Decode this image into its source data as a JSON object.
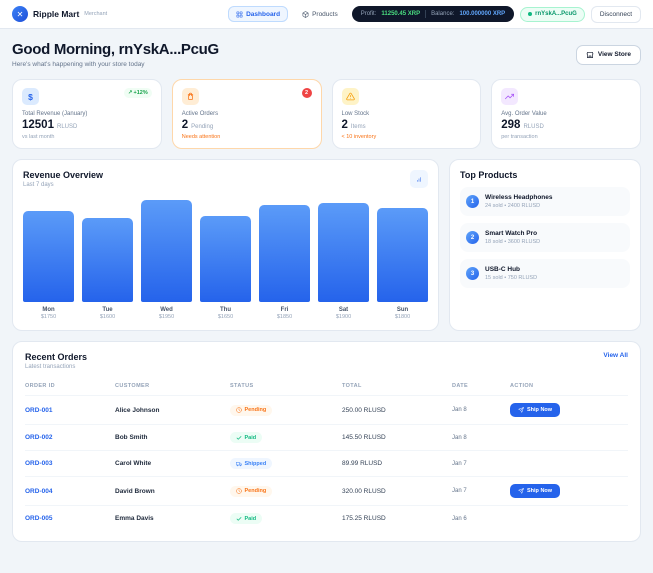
{
  "icons": {
    "logo": "✕",
    "trend_up": "↗",
    "dollar": "$"
  },
  "colors": {
    "accent": "#2563eb",
    "success": "#10b981",
    "warning": "#f97316",
    "danger": "#ef4444",
    "purple": "#a855f7",
    "background": "#f1f5f9"
  },
  "navbar": {
    "brand": "Ripple Mart",
    "brand_tag": "Merchant",
    "nav_dashboard": "Dashboard",
    "nav_products": "Products",
    "profit_label": "Profit:",
    "profit_value": "11250.45 XRP",
    "balance_label": "Balance:",
    "balance_value": "100.000000 XRP",
    "wallet_address": "rnYskA...PcuG",
    "disconnect_label": "Disconnect"
  },
  "header": {
    "greeting": "Good Morning, rnYskA...PcuG",
    "subtitle": "Here's what's happening with your store today",
    "view_store_label": "View Store"
  },
  "stats": [
    {
      "title": "Total Revenue (January)",
      "value": "12501",
      "unit": "RLUSD",
      "note": "vs last month",
      "badge": "+12%"
    },
    {
      "title": "Active Orders",
      "value": "2",
      "unit": "Pending",
      "note": "Needs attention",
      "badge": "2"
    },
    {
      "title": "Low Stock",
      "value": "2",
      "unit": "Items",
      "note": "< 10 inventory",
      "badge": ""
    },
    {
      "title": "Avg. Order Value",
      "value": "298",
      "unit": "RLUSD",
      "note": "per transaction",
      "badge": ""
    }
  ],
  "chart_data": {
    "type": "bar",
    "title": "Revenue Overview",
    "subtitle": "Last 7 days",
    "categories": [
      "Mon",
      "Tue",
      "Wed",
      "Thu",
      "Fri",
      "Sat",
      "Sun"
    ],
    "values": [
      1750,
      1600,
      1950,
      1650,
      1850,
      1900,
      1800
    ],
    "value_labels": [
      "$1750",
      "$1600",
      "$1950",
      "$1650",
      "$1850",
      "$1900",
      "$1800"
    ],
    "ylim": [
      0,
      1950
    ],
    "xlabel": "",
    "ylabel": "",
    "legend": false,
    "grid": false,
    "bar_color": "#2563eb"
  },
  "top_products": {
    "title": "Top Products",
    "items": [
      {
        "rank": "1",
        "name": "Wireless Headphones",
        "meta": "24 sold • 2400 RLUSD"
      },
      {
        "rank": "2",
        "name": "Smart Watch Pro",
        "meta": "18 sold • 3600 RLUSD"
      },
      {
        "rank": "3",
        "name": "USB-C Hub",
        "meta": "15 sold • 750 RLUSD"
      }
    ]
  },
  "orders": {
    "title": "Recent Orders",
    "subtitle": "Latest transactions",
    "view_all_label": "View All",
    "columns": [
      "Order ID",
      "Customer",
      "Status",
      "Total",
      "Date",
      "Action"
    ],
    "ship_now_label": "Ship Now",
    "rows": [
      {
        "id": "ORD-001",
        "customer": "Alice Johnson",
        "status": "Pending",
        "total": "250.00 RLUSD",
        "date": "Jan 8",
        "action": "Ship Now"
      },
      {
        "id": "ORD-002",
        "customer": "Bob Smith",
        "status": "Paid",
        "total": "145.50 RLUSD",
        "date": "Jan 8",
        "action": ""
      },
      {
        "id": "ORD-003",
        "customer": "Carol White",
        "status": "Shipped",
        "total": "89.99 RLUSD",
        "date": "Jan 7",
        "action": ""
      },
      {
        "id": "ORD-004",
        "customer": "David Brown",
        "status": "Pending",
        "total": "320.00 RLUSD",
        "date": "Jan 7",
        "action": "Ship Now"
      },
      {
        "id": "ORD-005",
        "customer": "Emma Davis",
        "status": "Paid",
        "total": "175.25 RLUSD",
        "date": "Jan 6",
        "action": ""
      }
    ]
  }
}
